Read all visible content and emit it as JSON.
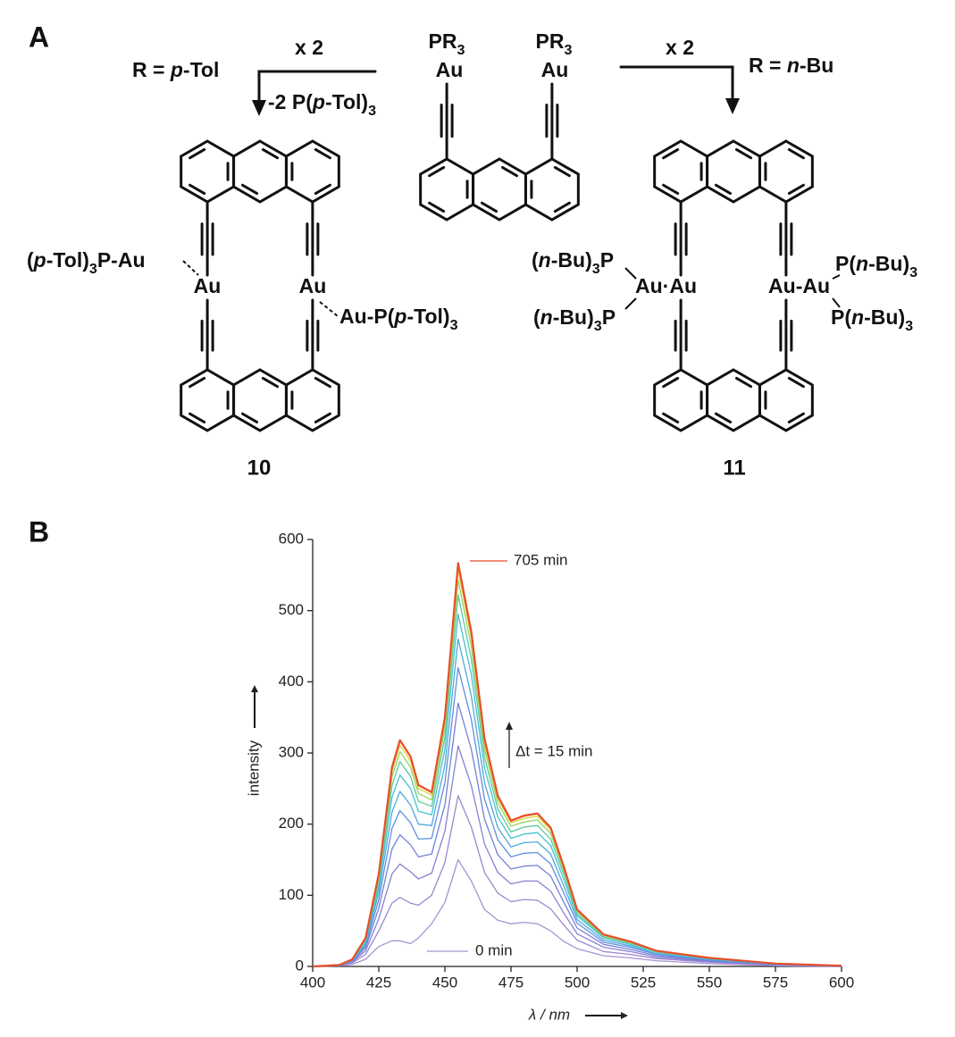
{
  "panel_a": {
    "label": "A",
    "left_reaction": {
      "multiplier": "x 2",
      "r_group": "R = p-Tol",
      "byproduct": "-2 P(p-Tol)3"
    },
    "reactant": {
      "ligands": [
        "PR3",
        "PR3"
      ],
      "metals": [
        "Au",
        "Au"
      ]
    },
    "right_reaction": {
      "multiplier": "x 2",
      "r_group": "R = n-Bu"
    },
    "product_10": {
      "labels": [
        "(p-Tol)3P-Au",
        "Au",
        "Au",
        "Au-P(p-Tol)3"
      ],
      "number": "10"
    },
    "product_11": {
      "labels": [
        "(n-Bu)3P",
        "Au·Au",
        "(n-Bu)3P",
        "Au-Au",
        "P(n-Bu)3",
        "P(n-Bu)3"
      ],
      "number": "11"
    }
  },
  "panel_b": {
    "label": "B"
  },
  "chart_data": {
    "type": "line",
    "x_label": "λ / nm",
    "y_label": "intensity",
    "annotations": [
      "705 min",
      "Δt = 15 min",
      "0 min"
    ],
    "x": [
      400,
      410,
      415,
      420,
      425,
      430,
      433,
      437,
      440,
      445,
      450,
      455,
      460,
      465,
      470,
      475,
      480,
      485,
      490,
      495,
      500,
      510,
      520,
      530,
      550,
      575,
      600
    ],
    "xlim": [
      400,
      600
    ],
    "xticks": [
      400,
      425,
      450,
      475,
      500,
      525,
      550,
      575,
      600
    ],
    "ylim": [
      0,
      600
    ],
    "yticks": [
      0,
      100,
      200,
      300,
      400,
      500,
      600
    ],
    "series": [
      {
        "color": "#a892d4",
        "values": [
          0,
          1,
          3,
          10,
          28,
          36,
          36,
          32,
          40,
          60,
          90,
          150,
          120,
          80,
          65,
          60,
          62,
          60,
          50,
          35,
          25,
          15,
          12,
          8,
          4,
          1,
          0
        ]
      },
      {
        "color": "#9a88d2",
        "values": [
          0,
          1,
          5,
          17,
          50,
          89,
          97,
          89,
          86,
          100,
          146,
          240,
          196,
          132,
          103,
          91,
          94,
          93,
          81,
          58,
          37,
          21,
          17,
          11,
          6,
          2,
          0
        ]
      },
      {
        "color": "#8a80d4",
        "values": [
          0,
          1,
          6,
          22,
          67,
          130,
          144,
          133,
          123,
          131,
          190,
          310,
          254,
          172,
          132,
          116,
          120,
          120,
          106,
          75,
          46,
          27,
          21,
          13,
          7,
          2,
          0
        ]
      },
      {
        "color": "#7480da",
        "values": [
          0,
          2,
          7,
          26,
          82,
          165,
          185,
          171,
          154,
          158,
          227,
          370,
          305,
          207,
          157,
          137,
          141,
          142,
          127,
          90,
          54,
          31,
          24,
          15,
          8,
          3,
          1
        ]
      },
      {
        "color": "#5f8fdc",
        "values": [
          0,
          2,
          8,
          29,
          94,
          194,
          219,
          202,
          179,
          180,
          258,
          420,
          347,
          235,
          178,
          154,
          159,
          160,
          144,
          103,
          61,
          34,
          27,
          17,
          9,
          3,
          1
        ]
      },
      {
        "color": "#4fa9dc",
        "values": [
          0,
          2,
          8,
          32,
          104,
          217,
          246,
          227,
          200,
          198,
          283,
          460,
          380,
          258,
          195,
          168,
          174,
          175,
          158,
          113,
          66,
          37,
          29,
          18,
          10,
          3,
          1
        ]
      },
      {
        "color": "#45c2d0",
        "values": [
          0,
          2,
          9,
          35,
          112,
          238,
          269,
          250,
          218,
          213,
          305,
          495,
          410,
          279,
          210,
          180,
          186,
          188,
          170,
          122,
          71,
          40,
          31,
          20,
          11,
          4,
          1
        ]
      },
      {
        "color": "#5cc99a",
        "values": [
          0,
          2,
          9,
          37,
          119,
          254,
          288,
          267,
          232,
          225,
          322,
          522,
          432,
          294,
          221,
          189,
          196,
          198,
          179,
          129,
          74,
          42,
          33,
          21,
          11,
          4,
          1
        ]
      },
      {
        "color": "#99d25c",
        "values": [
          0,
          2,
          10,
          38,
          124,
          266,
          302,
          280,
          243,
          234,
          335,
          543,
          450,
          306,
          230,
          197,
          203,
          206,
          187,
          134,
          77,
          43,
          34,
          21,
          12,
          4,
          1
        ]
      },
      {
        "color": "#d9d23e",
        "values": [
          0,
          2,
          10,
          39,
          128,
          274,
          311,
          289,
          250,
          241,
          344,
          557,
          462,
          314,
          236,
          202,
          208,
          211,
          192,
          138,
          79,
          44,
          34,
          22,
          12,
          4,
          1
        ]
      },
      {
        "color": "#f2a43a",
        "values": [
          0,
          2,
          10,
          40,
          130,
          279,
          317,
          294,
          254,
          244,
          349,
          565,
          468,
          319,
          239,
          204,
          211,
          214,
          194,
          140,
          80,
          45,
          35,
          22,
          12,
          4,
          1
        ]
      },
      {
        "color": "#e84e2a",
        "values": [
          0,
          2,
          10,
          40,
          130,
          280,
          318,
          295,
          255,
          245,
          350,
          567,
          470,
          320,
          240,
          205,
          212,
          215,
          195,
          140,
          80,
          45,
          35,
          22,
          12,
          4,
          1
        ]
      }
    ]
  }
}
